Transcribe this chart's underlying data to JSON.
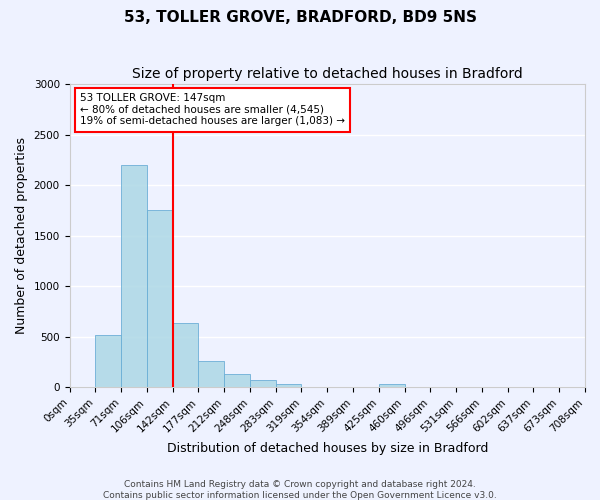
{
  "title": "53, TOLLER GROVE, BRADFORD, BD9 5NS",
  "subtitle": "Size of property relative to detached houses in Bradford",
  "xlabel": "Distribution of detached houses by size in Bradford",
  "ylabel": "Number of detached properties",
  "bin_labels": [
    "0sqm",
    "35sqm",
    "71sqm",
    "106sqm",
    "142sqm",
    "177sqm",
    "212sqm",
    "248sqm",
    "283sqm",
    "319sqm",
    "354sqm",
    "389sqm",
    "425sqm",
    "460sqm",
    "496sqm",
    "531sqm",
    "566sqm",
    "602sqm",
    "637sqm",
    "673sqm",
    "708sqm"
  ],
  "bar_values": [
    0,
    520,
    2200,
    1750,
    630,
    260,
    130,
    75,
    30,
    0,
    0,
    0,
    30,
    0,
    0,
    0,
    0,
    0,
    0,
    0
  ],
  "bar_color": "#add8e6",
  "bar_edge_color": "#6baed6",
  "vline_x": 4,
  "vline_color": "red",
  "ylim": [
    0,
    3000
  ],
  "yticks": [
    0,
    500,
    1000,
    1500,
    2000,
    2500,
    3000
  ],
  "annotation_box_text": "53 TOLLER GROVE: 147sqm\n← 80% of detached houses are smaller (4,545)\n19% of semi-detached houses are larger (1,083) →",
  "footer": "Contains HM Land Registry data © Crown copyright and database right 2024.\nContains public sector information licensed under the Open Government Licence v3.0.",
  "background_color": "#eef2ff",
  "grid_color": "#ffffff",
  "title_fontsize": 11,
  "subtitle_fontsize": 10,
  "axis_label_fontsize": 9,
  "tick_fontsize": 7.5,
  "footer_fontsize": 6.5
}
